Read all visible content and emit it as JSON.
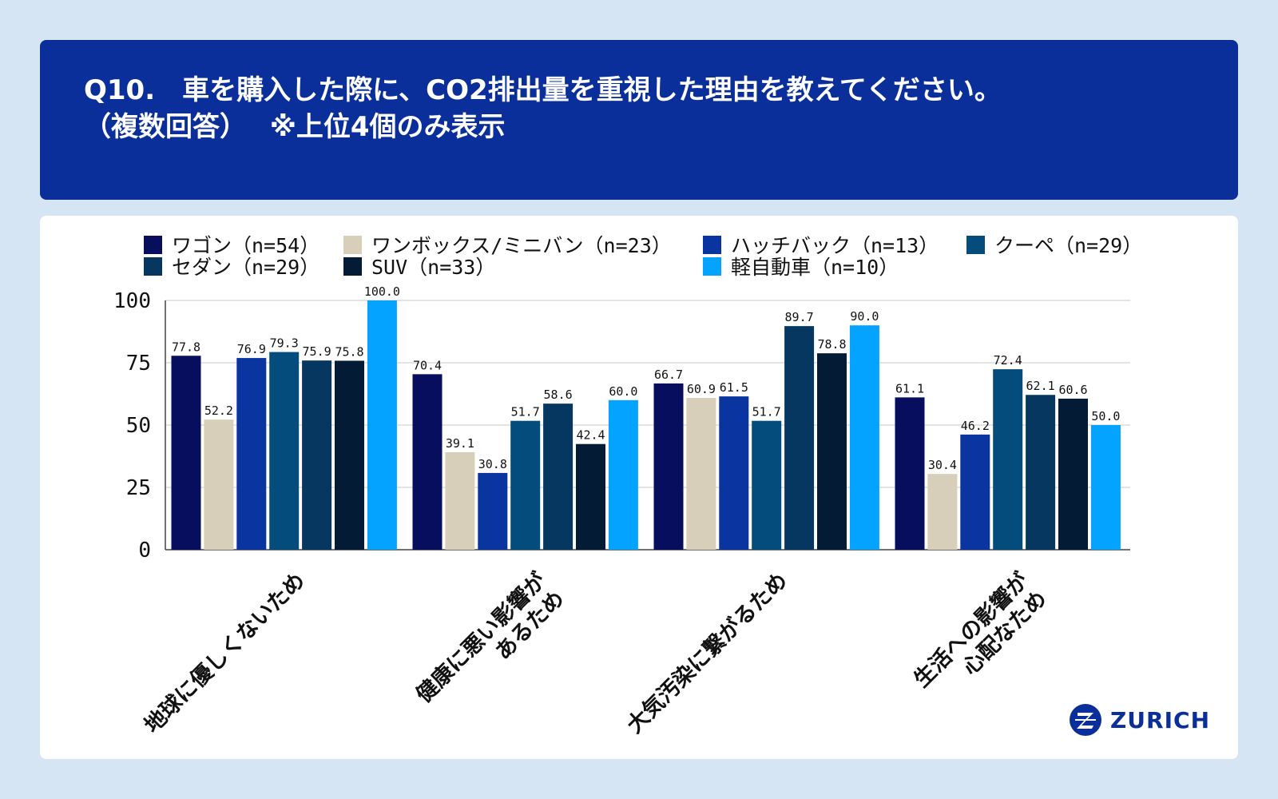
{
  "header": {
    "line1": "Q10.　車を購入した際に、CO2排出量を重視した理由を教えてください。",
    "line2": "（複数回答）　 ※上位4個のみ表示"
  },
  "logo": {
    "text": "ZURICH",
    "icon": "zurich-z-logo-icon"
  },
  "colors": {
    "header_bg": "#0a2f9b",
    "page_bg": "#d6e5f3",
    "panel_bg": "#ffffff"
  },
  "chart_data": {
    "type": "bar",
    "title": "",
    "xlabel": "",
    "ylabel": "",
    "ylim": [
      0,
      100
    ],
    "yticks": [
      0,
      25,
      50,
      75,
      100
    ],
    "grid": true,
    "legend_position": "top",
    "categories": [
      [
        "地球に優しくないため"
      ],
      [
        "健康に悪い影響が",
        "あるため"
      ],
      [
        "大気汚染に繋がるため"
      ],
      [
        "生活への影響が",
        "心配なため"
      ]
    ],
    "series": [
      {
        "name": "ワゴン（n=54）",
        "color": "#070e5e",
        "values": [
          77.8,
          70.4,
          66.7,
          61.1
        ]
      },
      {
        "name": "ワンボックス/ミニバン（n=23）",
        "color": "#d7cfb9",
        "values": [
          52.2,
          39.1,
          60.9,
          30.4
        ]
      },
      {
        "name": "ハッチバック（n=13）",
        "color": "#0a34a0",
        "values": [
          76.9,
          30.8,
          61.5,
          46.2
        ]
      },
      {
        "name": "クーペ（n=29）",
        "color": "#044c7c",
        "values": [
          79.3,
          51.7,
          51.7,
          72.4
        ]
      },
      {
        "name": "セダン（n=29）",
        "color": "#053761",
        "values": [
          75.9,
          58.6,
          89.7,
          62.1
        ]
      },
      {
        "name": "SUV（n=33）",
        "color": "#041b36",
        "values": [
          75.8,
          42.4,
          78.8,
          60.6
        ]
      },
      {
        "name": "軽自動車（n=10）",
        "color": "#03a3ff",
        "values": [
          100.0,
          60.0,
          90.0,
          50.0
        ]
      }
    ]
  }
}
